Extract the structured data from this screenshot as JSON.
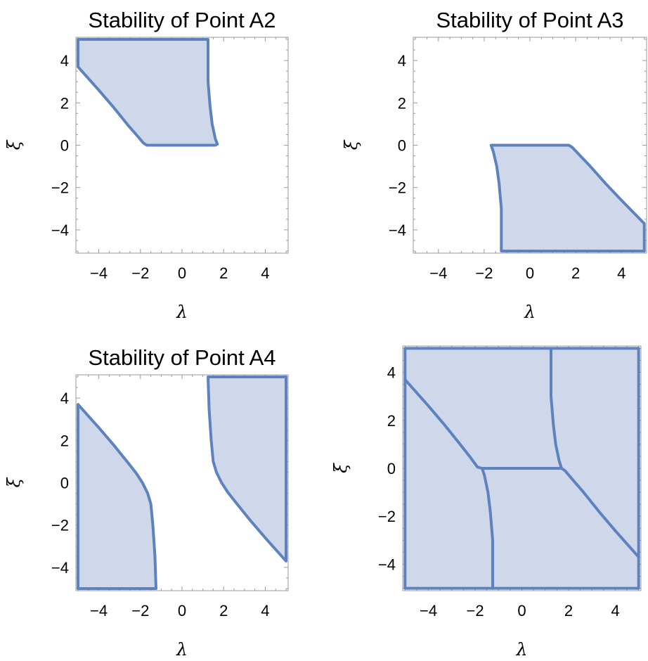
{
  "chart_data": [
    {
      "type": "area",
      "title": "Stability of Point A2",
      "xlabel": "λ",
      "ylabel": "ξ",
      "xlim": [
        -5.1,
        5.1
      ],
      "ylim": [
        -5.1,
        5.1
      ],
      "xticks": [
        -4,
        -2,
        0,
        2,
        4
      ],
      "yticks": [
        -4,
        -2,
        0,
        2,
        4
      ],
      "xtick_labels": [
        "−4",
        "−2",
        "0",
        "2",
        "4"
      ],
      "ytick_labels": [
        "−4",
        "−2",
        "0",
        "2",
        "4"
      ],
      "regions": [
        [
          [
            -5,
            5
          ],
          [
            1.25,
            5
          ],
          [
            1.25,
            3
          ],
          [
            1.35,
            1.8
          ],
          [
            1.45,
            1.0
          ],
          [
            1.6,
            0.3
          ],
          [
            1.7,
            0.05
          ],
          [
            1.6,
            0
          ],
          [
            -1.7,
            0
          ],
          [
            -1.85,
            0.1
          ],
          [
            -2.2,
            0.5
          ],
          [
            -2.6,
            0.95
          ],
          [
            -3.3,
            1.8
          ],
          [
            -4.0,
            2.6
          ],
          [
            -5,
            3.7
          ]
        ]
      ]
    },
    {
      "type": "area",
      "title": "Stability of Point A3",
      "xlabel": "λ",
      "ylabel": "ξ",
      "xlim": [
        -5.1,
        5.1
      ],
      "ylim": [
        -5.1,
        5.1
      ],
      "xticks": [
        -4,
        -2,
        0,
        2,
        4
      ],
      "yticks": [
        -4,
        -2,
        0,
        2,
        4
      ],
      "xtick_labels": [
        "−4",
        "−2",
        "0",
        "2",
        "4"
      ],
      "ytick_labels": [
        "−4",
        "−2",
        "0",
        "2",
        "4"
      ],
      "regions": [
        [
          [
            -1.7,
            0
          ],
          [
            1.7,
            0
          ],
          [
            1.85,
            -0.1
          ],
          [
            2.2,
            -0.5
          ],
          [
            2.6,
            -0.95
          ],
          [
            3.3,
            -1.8
          ],
          [
            4.0,
            -2.6
          ],
          [
            5,
            -3.7
          ],
          [
            5,
            -5
          ],
          [
            -1.25,
            -5
          ],
          [
            -1.25,
            -3
          ],
          [
            -1.35,
            -1.8
          ],
          [
            -1.45,
            -1.0
          ],
          [
            -1.6,
            -0.3
          ]
        ]
      ]
    },
    {
      "type": "area",
      "title": "Stability of Point A4",
      "xlabel": "λ",
      "ylabel": "ξ",
      "xlim": [
        -5.1,
        5.1
      ],
      "ylim": [
        -5.1,
        5.1
      ],
      "xticks": [
        -4,
        -2,
        0,
        2,
        4
      ],
      "yticks": [
        -4,
        -2,
        0,
        2,
        4
      ],
      "xtick_labels": [
        "−4",
        "−2",
        "0",
        "2",
        "4"
      ],
      "ytick_labels": [
        "−4",
        "−2",
        "0",
        "2",
        "4"
      ],
      "regions": [
        [
          [
            -5,
            3.7
          ],
          [
            -4.0,
            2.6
          ],
          [
            -3.3,
            1.8
          ],
          [
            -2.6,
            0.95
          ],
          [
            -2.2,
            0.45
          ],
          [
            -1.9,
            0.0
          ],
          [
            -1.65,
            -0.5
          ],
          [
            -1.5,
            -1.0
          ],
          [
            -1.4,
            -2.0
          ],
          [
            -1.3,
            -3.5
          ],
          [
            -1.25,
            -5
          ],
          [
            -5,
            -5
          ]
        ],
        [
          [
            1.25,
            5
          ],
          [
            5,
            5
          ],
          [
            5,
            -3.7
          ],
          [
            4.0,
            -2.6
          ],
          [
            3.3,
            -1.8
          ],
          [
            2.6,
            -0.95
          ],
          [
            2.2,
            -0.45
          ],
          [
            1.9,
            0.0
          ],
          [
            1.65,
            0.5
          ],
          [
            1.5,
            1.0
          ],
          [
            1.4,
            2.0
          ],
          [
            1.3,
            3.5
          ]
        ]
      ]
    },
    {
      "type": "area",
      "title": "",
      "xlabel": "λ",
      "ylabel": "ξ",
      "xlim": [
        -5.1,
        5.1
      ],
      "ylim": [
        -5.1,
        5.1
      ],
      "xticks": [
        -4,
        -2,
        0,
        2,
        4
      ],
      "yticks": [
        -4,
        -2,
        0,
        2,
        4
      ],
      "xtick_labels": [
        "−4",
        "−2",
        "0",
        "2",
        "4"
      ],
      "ytick_labels": [
        "−4",
        "−2",
        "0",
        "2",
        "4"
      ],
      "regions": [
        [
          [
            -5,
            5
          ],
          [
            5,
            5
          ],
          [
            5,
            -5
          ],
          [
            -5,
            -5
          ]
        ]
      ],
      "boundary_curves": [
        [
          [
            -5,
            3.7
          ],
          [
            -4.0,
            2.6
          ],
          [
            -3.3,
            1.8
          ],
          [
            -2.6,
            0.95
          ],
          [
            -2.2,
            0.45
          ],
          [
            -1.9,
            0.05
          ],
          [
            -1.7,
            0
          ]
        ],
        [
          [
            -1.7,
            0
          ],
          [
            1.7,
            0
          ]
        ],
        [
          [
            1.25,
            5
          ],
          [
            1.25,
            3
          ],
          [
            1.35,
            1.8
          ],
          [
            1.45,
            1.0
          ],
          [
            1.6,
            0.3
          ],
          [
            1.7,
            0
          ]
        ],
        [
          [
            -1.7,
            0
          ],
          [
            -1.6,
            -0.3
          ],
          [
            -1.45,
            -1.0
          ],
          [
            -1.35,
            -1.8
          ],
          [
            -1.25,
            -3
          ],
          [
            -1.25,
            -5
          ]
        ],
        [
          [
            1.7,
            0
          ],
          [
            1.85,
            -0.1
          ],
          [
            2.2,
            -0.5
          ],
          [
            2.6,
            -0.95
          ],
          [
            3.3,
            -1.8
          ],
          [
            4.0,
            -2.6
          ],
          [
            5,
            -3.7
          ]
        ]
      ]
    }
  ]
}
